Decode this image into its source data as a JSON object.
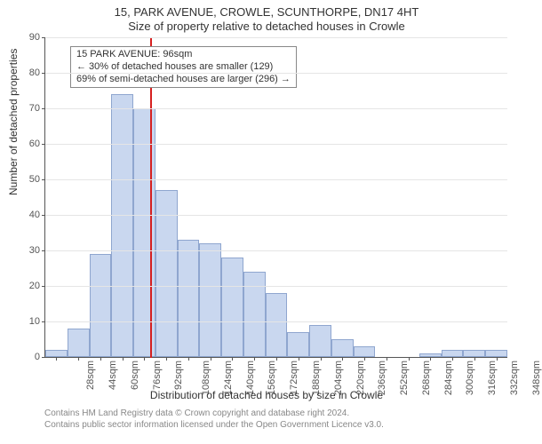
{
  "title_line1": "15, PARK AVENUE, CROWLE, SCUNTHORPE, DN17 4HT",
  "title_line2": "Size of property relative to detached houses in Crowle",
  "ylabel": "Number of detached properties",
  "xlabel": "Distribution of detached houses by size in Crowle",
  "footer_line1": "Contains HM Land Registry data © Crown copyright and database right 2024.",
  "footer_line2": "Contains public sector information licensed under the Open Government Licence v3.0.",
  "histogram": {
    "type": "histogram",
    "ylim": [
      0,
      90
    ],
    "ytick_step": 10,
    "bar_fill": "#c9d7ef",
    "bar_stroke": "#8fa6cf",
    "grid_color": "#e5e5e5",
    "axis_color": "#555555",
    "background_color": "#ffffff",
    "marker_color": "#d62020",
    "marker_x": 96,
    "x_start": 20,
    "bin_width": 16,
    "label_fontsize": 11,
    "categories": [
      "28sqm",
      "44sqm",
      "60sqm",
      "76sqm",
      "92sqm",
      "108sqm",
      "124sqm",
      "140sqm",
      "156sqm",
      "172sqm",
      "188sqm",
      "204sqm",
      "220sqm",
      "236sqm",
      "252sqm",
      "268sqm",
      "284sqm",
      "300sqm",
      "316sqm",
      "332sqm",
      "348sqm"
    ],
    "values": [
      2,
      8,
      29,
      74,
      70,
      47,
      33,
      32,
      28,
      24,
      18,
      7,
      9,
      5,
      3,
      0,
      0,
      1,
      2,
      2,
      2
    ]
  },
  "annotation": {
    "line1": "15 PARK AVENUE: 96sqm",
    "line2": "← 30% of detached houses are smaller (129)",
    "line3": "69% of semi-detached houses are larger (296) →",
    "box_border": "#888888",
    "box_bg": "#ffffff",
    "fontsize": 11
  }
}
